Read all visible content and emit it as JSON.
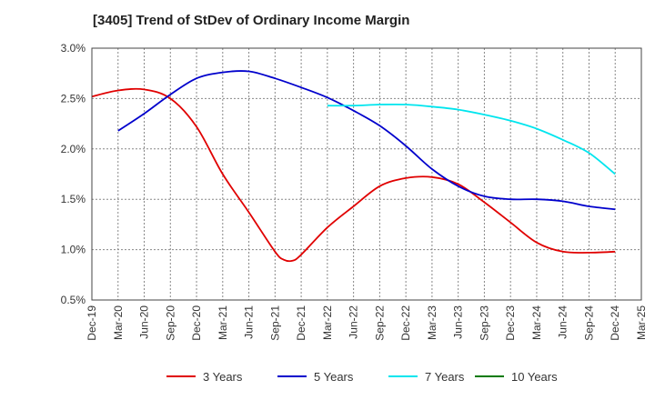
{
  "chart_data": {
    "type": "line",
    "title": "[3405]  Trend of StDev of Ordinary Income Margin",
    "xlabel": "",
    "ylabel": "",
    "ylim": [
      0.5,
      3.0
    ],
    "y_ticks": [
      "0.5%",
      "1.0%",
      "1.5%",
      "2.0%",
      "2.5%",
      "3.0%"
    ],
    "y_tick_values": [
      0.5,
      1.0,
      1.5,
      2.0,
      2.5,
      3.0
    ],
    "x_ticks": [
      "Dec-19",
      "Mar-20",
      "Jun-20",
      "Sep-20",
      "Dec-20",
      "Mar-21",
      "Jun-21",
      "Sep-21",
      "Dec-21",
      "Mar-22",
      "Jun-22",
      "Sep-22",
      "Dec-22",
      "Mar-23",
      "Jun-23",
      "Sep-23",
      "Dec-23",
      "Mar-24",
      "Jun-24",
      "Sep-24",
      "Dec-24",
      "Mar-25"
    ],
    "grid": true,
    "legend_position": "bottom",
    "series": [
      {
        "name": "3 Years",
        "color": "#e00000",
        "x": [
          "Dec-19",
          "Mar-20",
          "Jun-20",
          "Sep-20",
          "Dec-20",
          "Mar-21",
          "Jun-21",
          "Sep-21",
          "Oct-21",
          "Nov-21",
          "Dec-21",
          "Mar-22",
          "Jun-22",
          "Sep-22",
          "Dec-22",
          "Mar-23",
          "Jun-23",
          "Sep-23",
          "Dec-23",
          "Mar-24",
          "Jun-24",
          "Sep-24",
          "Dec-24"
        ],
        "values": [
          2.52,
          2.58,
          2.59,
          2.5,
          2.22,
          1.75,
          1.37,
          0.98,
          0.9,
          0.89,
          0.95,
          1.22,
          1.43,
          1.63,
          1.71,
          1.72,
          1.65,
          1.47,
          1.27,
          1.07,
          0.98,
          0.97,
          0.98
        ]
      },
      {
        "name": "5 Years",
        "color": "#0000cc",
        "x": [
          "Mar-20",
          "Jun-20",
          "Sep-20",
          "Dec-20",
          "Mar-21",
          "Jun-21",
          "Sep-21",
          "Dec-21",
          "Mar-22",
          "Jun-22",
          "Sep-22",
          "Dec-22",
          "Mar-23",
          "Jun-23",
          "Sep-23",
          "Dec-23",
          "Mar-24",
          "Jun-24",
          "Sep-24",
          "Dec-24"
        ],
        "values": [
          2.18,
          2.35,
          2.54,
          2.7,
          2.76,
          2.77,
          2.7,
          2.61,
          2.51,
          2.38,
          2.23,
          2.03,
          1.8,
          1.63,
          1.53,
          1.5,
          1.5,
          1.48,
          1.43,
          1.4
        ]
      },
      {
        "name": "7 Years",
        "color": "#00e5ee",
        "x": [
          "Mar-22",
          "Jun-22",
          "Sep-22",
          "Dec-22",
          "Mar-23",
          "Jun-23",
          "Sep-23",
          "Dec-23",
          "Mar-24",
          "Jun-24",
          "Sep-24",
          "Dec-24"
        ],
        "values": [
          2.43,
          2.43,
          2.44,
          2.44,
          2.42,
          2.39,
          2.34,
          2.28,
          2.2,
          2.09,
          1.96,
          1.75
        ]
      },
      {
        "name": "10 Years",
        "color": "#007a00",
        "x": [],
        "values": []
      }
    ]
  }
}
